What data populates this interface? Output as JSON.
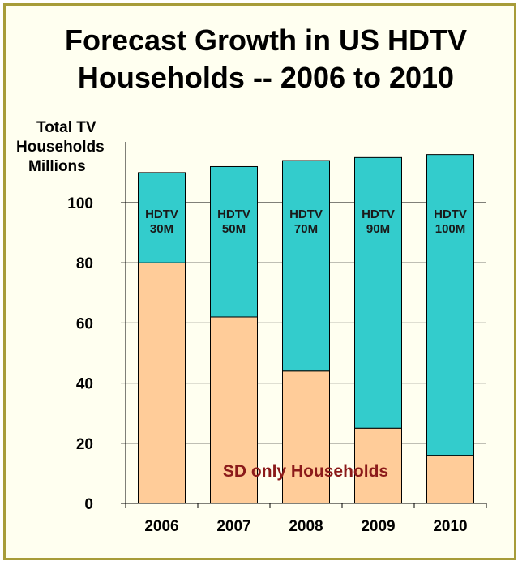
{
  "chart_data": {
    "type": "bar",
    "stacked": true,
    "title_lines": [
      "Forecast Growth in US HDTV",
      "Households  --  2006 to 2010"
    ],
    "ylabel_lines": [
      "Total TV",
      "Households",
      "Millions"
    ],
    "xlabel": "",
    "categories": [
      "2006",
      "2007",
      "2008",
      "2009",
      "2010"
    ],
    "ylim": [
      0,
      120
    ],
    "yticks": [
      0,
      20,
      40,
      60,
      80,
      100
    ],
    "grid": true,
    "series": [
      {
        "name": "SD only Households",
        "color": "#ffcc99",
        "values": [
          80,
          62,
          44,
          25,
          16
        ]
      },
      {
        "name": "HDTV",
        "color": "#33cccc",
        "values": [
          30,
          50,
          70,
          90,
          100
        ]
      }
    ],
    "bar_labels": [
      [
        "HDTV",
        "30M"
      ],
      [
        "HDTV",
        "50M"
      ],
      [
        "HDTV",
        "70M"
      ],
      [
        "HDTV",
        "90M"
      ],
      [
        "HDTV",
        "100M"
      ]
    ],
    "annotation": "SD only Households"
  },
  "colors": {
    "frame_border": "#a79c39",
    "background": "#fffff0",
    "sd_label": "#8b1a1a"
  }
}
